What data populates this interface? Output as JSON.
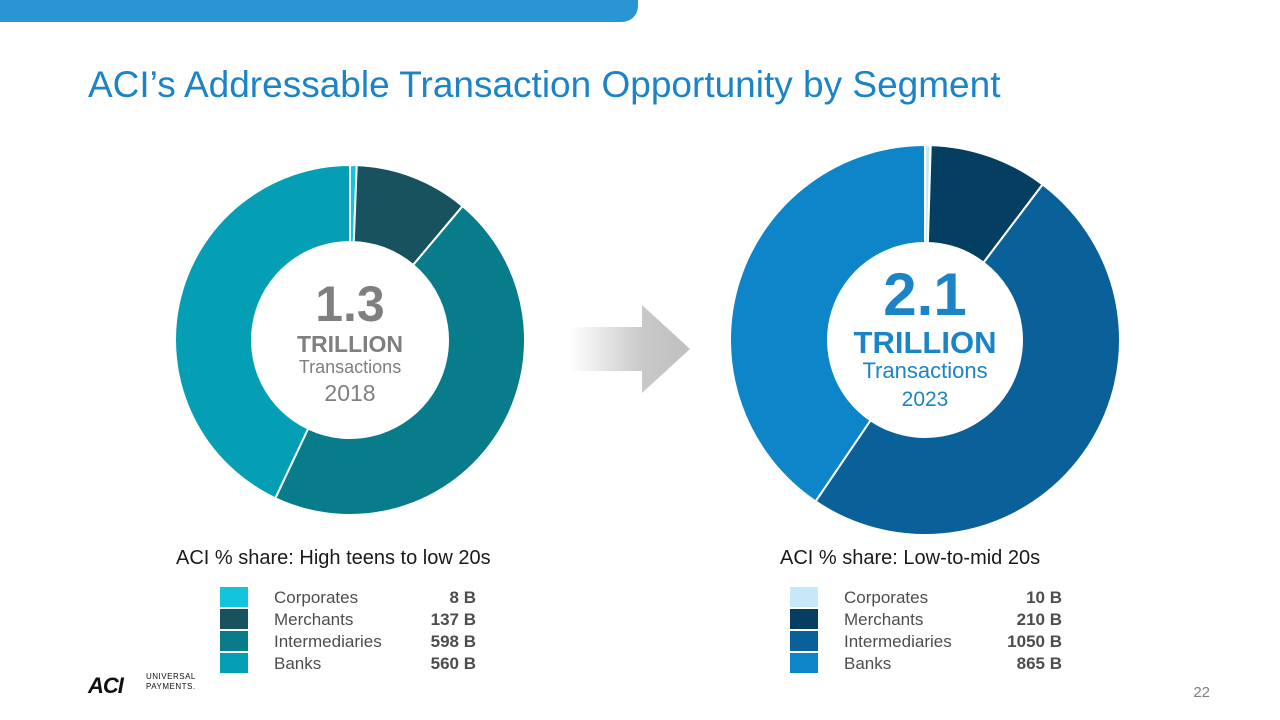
{
  "title": "ACI’s Addressable Transaction Opportunity by Segment",
  "page_number": "22",
  "logo": {
    "mark": "ACI",
    "line1": "UNIVERSAL",
    "line2": "PAYMENTS."
  },
  "colors": {
    "top_bar": "#2a95d3",
    "title": "#1a84c7",
    "arrow": "#bfbfbf"
  },
  "chart_data": [
    {
      "type": "pie",
      "variant": "donut",
      "center": {
        "value": "1.3",
        "unit": "TRILLION",
        "label": "Transactions",
        "year": "2018"
      },
      "caption": "ACI % share: High teens to low 20s",
      "categories": [
        "Corporates",
        "Merchants",
        "Intermediaries",
        "Banks"
      ],
      "values": [
        8,
        137,
        598,
        560
      ],
      "value_labels": [
        "8 B",
        "137 B",
        "598 B",
        "560 B"
      ],
      "colors": [
        "#12c4dc",
        "#18525e",
        "#087c8a",
        "#049fb5"
      ]
    },
    {
      "type": "pie",
      "variant": "donut",
      "center": {
        "value": "2.1",
        "unit": "TRILLION",
        "label": "Transactions",
        "year": "2023"
      },
      "caption": "ACI % share: Low-to-mid 20s",
      "categories": [
        "Corporates",
        "Merchants",
        "Intermediaries",
        "Banks"
      ],
      "values": [
        10,
        210,
        1050,
        865
      ],
      "value_labels": [
        "10 B",
        "210 B",
        "1050 B",
        "865 B"
      ],
      "colors": [
        "#c7e8f8",
        "#043f62",
        "#0a6098",
        "#0d85c8"
      ]
    }
  ]
}
